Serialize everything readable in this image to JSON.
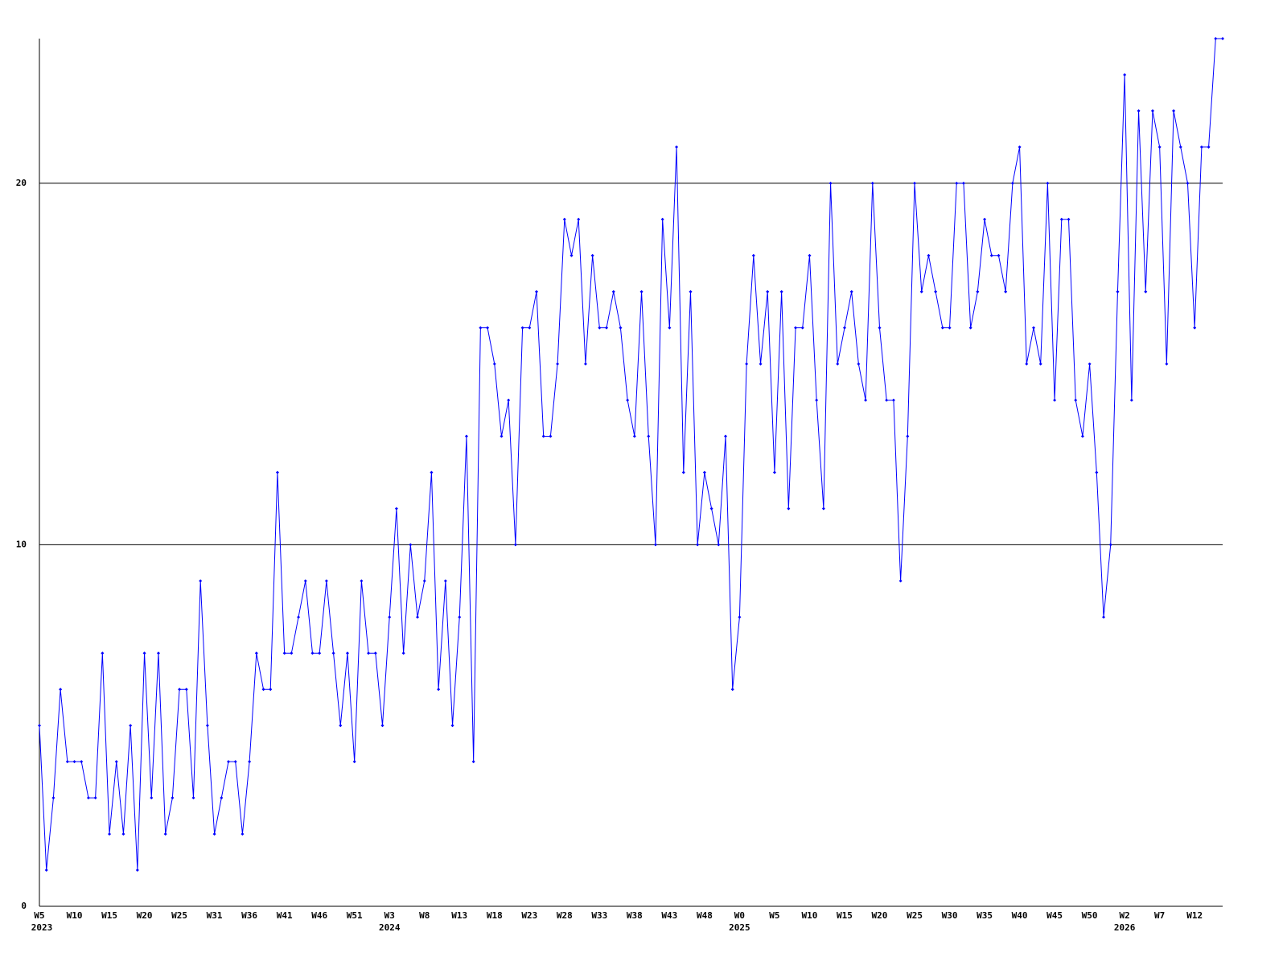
{
  "chart_data": {
    "type": "line",
    "categories": [
      "W5",
      null,
      null,
      null,
      null,
      "W10",
      null,
      null,
      null,
      null,
      "W15",
      null,
      null,
      null,
      null,
      "W20",
      null,
      null,
      null,
      null,
      "W25",
      null,
      null,
      null,
      null,
      "W31",
      null,
      null,
      null,
      null,
      "W36",
      null,
      null,
      null,
      null,
      "W41",
      null,
      null,
      null,
      null,
      "W46",
      null,
      null,
      null,
      null,
      "W51",
      null,
      null,
      null,
      null,
      "W3",
      null,
      null,
      null,
      null,
      "W8",
      null,
      null,
      null,
      null,
      "W13",
      null,
      null,
      null,
      null,
      "W18",
      null,
      null,
      null,
      null,
      "W23",
      null,
      null,
      null,
      null,
      "W28",
      null,
      null,
      null,
      null,
      "W33",
      null,
      null,
      null,
      null,
      "W38",
      null,
      null,
      null,
      null,
      "W43",
      null,
      null,
      null,
      null,
      "W48",
      null,
      null,
      null,
      null,
      "W0",
      null,
      null,
      null,
      null,
      "W5",
      null,
      null,
      null,
      null,
      "W10",
      null,
      null,
      null,
      null,
      "W15",
      null,
      null,
      null,
      null,
      "W20",
      null,
      null,
      null,
      null,
      "W25",
      null,
      null,
      null,
      null,
      "W30",
      null,
      null,
      null,
      null,
      "W35",
      null,
      null,
      null,
      null,
      "W40",
      null,
      null,
      null,
      null,
      "W45",
      null,
      null,
      null,
      null,
      "W50",
      null,
      null,
      null,
      null,
      "W2",
      null,
      null,
      null,
      null,
      "W7",
      null,
      null,
      null,
      null,
      "W12",
      null,
      null,
      null,
      null
    ],
    "category_years": [
      "2023",
      null,
      null,
      null,
      null,
      null,
      null,
      null,
      null,
      null,
      null,
      null,
      null,
      null,
      null,
      null,
      null,
      null,
      null,
      null,
      null,
      null,
      null,
      null,
      null,
      null,
      null,
      null,
      null,
      null,
      null,
      null,
      null,
      null,
      null,
      null,
      null,
      null,
      null,
      null,
      null,
      null,
      null,
      null,
      null,
      null,
      null,
      null,
      null,
      null,
      "2024",
      null,
      null,
      null,
      null,
      null,
      null,
      null,
      null,
      null,
      null,
      null,
      null,
      null,
      null,
      null,
      null,
      null,
      null,
      null,
      null,
      null,
      null,
      null,
      null,
      null,
      null,
      null,
      null,
      null,
      null,
      null,
      null,
      null,
      null,
      null,
      null,
      null,
      null,
      null,
      null,
      null,
      null,
      null,
      null,
      null,
      null,
      null,
      null,
      null,
      "2025",
      null,
      null,
      null,
      null,
      null,
      null,
      null,
      null,
      null,
      null,
      null,
      null,
      null,
      null,
      null,
      null,
      null,
      null,
      null,
      null,
      null,
      null,
      null,
      null,
      null,
      null,
      null,
      null,
      null,
      null,
      null,
      null,
      null,
      null,
      null,
      null,
      null,
      null,
      null,
      null,
      null,
      null,
      null,
      null,
      null,
      null,
      null,
      null,
      null,
      null,
      null,
      null,
      null,
      null,
      "2026",
      null,
      null,
      null,
      null,
      null,
      null,
      null,
      null,
      null,
      null,
      null,
      null,
      null,
      null
    ],
    "values": [
      5,
      1,
      3,
      6,
      4,
      4,
      4,
      3,
      3,
      7,
      2,
      4,
      2,
      5,
      1,
      7,
      3,
      7,
      2,
      3,
      6,
      6,
      3,
      9,
      5,
      2,
      3,
      4,
      4,
      2,
      4,
      7,
      6,
      6,
      12,
      7,
      7,
      8,
      9,
      7,
      7,
      9,
      7,
      5,
      7,
      4,
      9,
      7,
      7,
      5,
      8,
      11,
      7,
      10,
      8,
      9,
      12,
      6,
      9,
      5,
      8,
      13,
      4,
      16,
      16,
      15,
      13,
      14,
      10,
      16,
      16,
      17,
      13,
      13,
      15,
      19,
      18,
      19,
      15,
      18,
      16,
      16,
      17,
      16,
      14,
      13,
      17,
      13,
      10,
      19,
      16,
      21,
      12,
      17,
      10,
      12,
      11,
      10,
      13,
      6,
      8,
      15,
      18,
      15,
      17,
      12,
      17,
      11,
      16,
      16,
      18,
      14,
      11,
      20,
      15,
      16,
      17,
      15,
      14,
      20,
      16,
      14,
      14,
      9,
      13,
      20,
      17,
      18,
      17,
      16,
      16,
      20,
      20,
      16,
      17,
      19,
      18,
      18,
      17,
      20,
      21,
      15,
      16,
      15,
      20,
      14,
      19,
      19,
      14,
      13,
      15,
      12,
      8,
      10,
      17,
      23,
      14,
      22,
      17,
      22,
      21,
      15,
      22,
      21,
      20,
      16,
      21,
      21,
      24,
      24
    ],
    "color": "#0000ff",
    "ylim": [
      0,
      24
    ],
    "yticks": [
      0,
      10,
      20
    ],
    "grid": true
  }
}
